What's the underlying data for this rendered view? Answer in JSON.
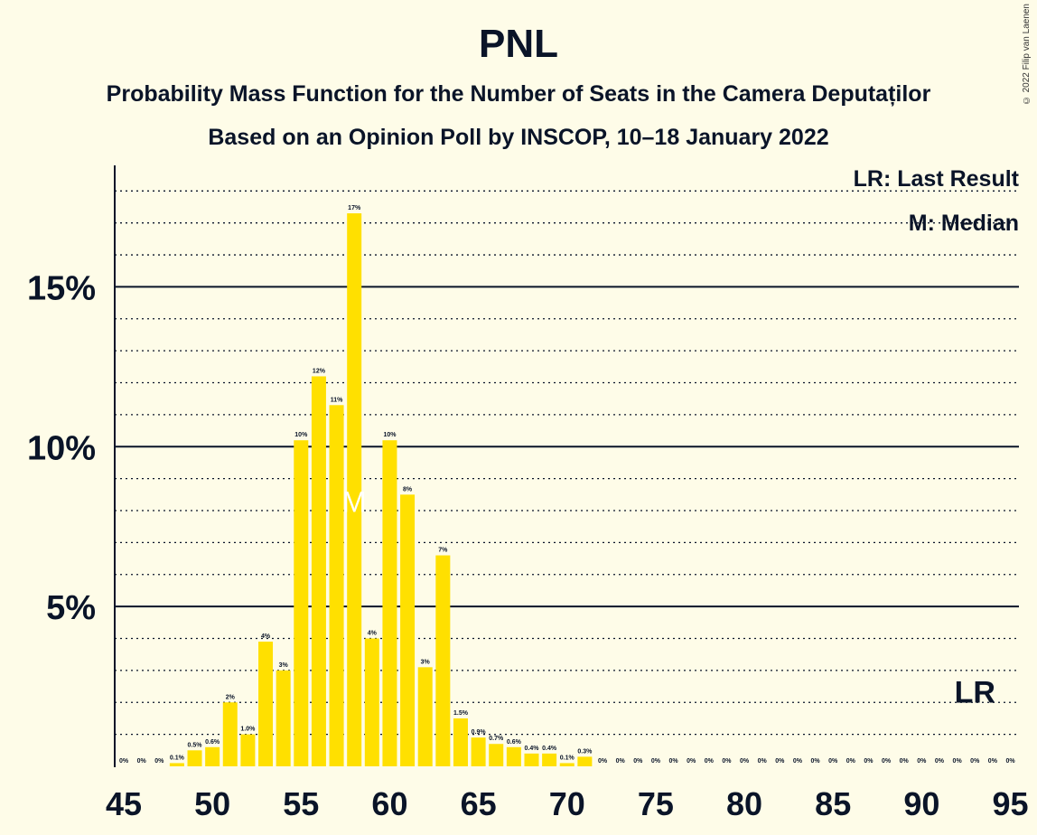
{
  "title": "PNL",
  "subtitle1": "Probability Mass Function for the Number of Seats in the Camera Deputaților",
  "subtitle2": "Based on an Opinion Poll by INSCOP, 10–18 January 2022",
  "copyright": "© 2022 Filip van Laenen",
  "legend": {
    "lr": "LR: Last Result",
    "median": "M: Median"
  },
  "colors": {
    "bar": "#FFE000",
    "background": "#FEFCE8",
    "text": "#0A1428"
  },
  "chart_data": {
    "type": "bar",
    "x": [
      45,
      46,
      47,
      48,
      49,
      50,
      51,
      52,
      53,
      54,
      55,
      56,
      57,
      58,
      59,
      60,
      61,
      62,
      63,
      64,
      65,
      66,
      67,
      68,
      69,
      70,
      71,
      72,
      73,
      74,
      75,
      76,
      77,
      78,
      79,
      80,
      81,
      82,
      83,
      84,
      85,
      86,
      87,
      88,
      89,
      90,
      91,
      92,
      93,
      94,
      95
    ],
    "values": [
      0,
      0,
      0,
      0.1,
      0.5,
      0.6,
      2.0,
      1.0,
      3.9,
      3.0,
      10.2,
      12.2,
      11.3,
      17.3,
      4.0,
      10.2,
      8.5,
      3.1,
      6.6,
      1.5,
      0.9,
      0.7,
      0.6,
      0.4,
      0.4,
      0.1,
      0.3,
      0,
      0,
      0,
      0,
      0,
      0,
      0,
      0,
      0,
      0,
      0,
      0,
      0,
      0,
      0,
      0,
      0,
      0,
      0,
      0,
      0,
      0,
      0,
      0
    ],
    "labels": [
      "0%",
      "0%",
      "0%",
      "0.1%",
      "0.5%",
      "0.6%",
      "2%",
      "1.0%",
      "4%",
      "3%",
      "10%",
      "12%",
      "11%",
      "17%",
      "4%",
      "10%",
      "8%",
      "3%",
      "7%",
      "1.5%",
      "0.9%",
      "0.7%",
      "0.6%",
      "0.4%",
      "0.4%",
      "0.1%",
      "0.3%",
      "0%",
      "0%",
      "0%",
      "0%",
      "0%",
      "0%",
      "0%",
      "0%",
      "0%",
      "0%",
      "0%",
      "0%",
      "0%",
      "0%",
      "0%",
      "0%",
      "0%",
      "0%",
      "0%",
      "0%",
      "0%",
      "0%",
      "0%",
      "0%"
    ],
    "xticks": [
      45,
      50,
      55,
      60,
      65,
      70,
      75,
      80,
      85,
      90,
      95
    ],
    "xtick_labels": [
      "45",
      "50",
      "55",
      "60",
      "65",
      "70",
      "75",
      "80",
      "85",
      "90",
      "95"
    ],
    "yticks": [
      5,
      10,
      15
    ],
    "ytick_labels": [
      "5%",
      "10%",
      "15%"
    ],
    "ylim": [
      0,
      18.8
    ],
    "median_seat": 58,
    "median_marker": "M",
    "last_result_seat": 93,
    "last_result_marker": "LR"
  }
}
